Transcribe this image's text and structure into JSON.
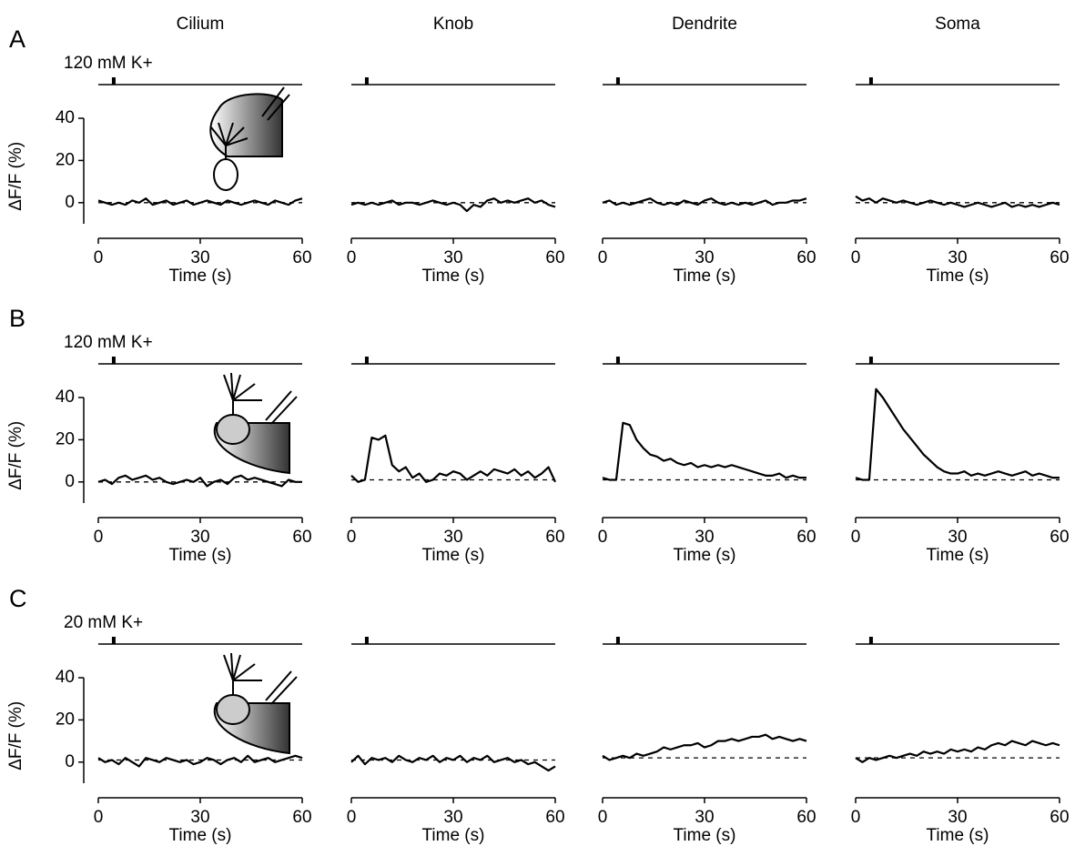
{
  "chart_data": [
    {
      "type": "line",
      "title": "Cilium",
      "panel_label": "A",
      "stimulus_label": "120 mM K+",
      "y_label": "ΔF/F (%)",
      "x_label": "Time (s)",
      "stimulus": [
        4,
        5
      ],
      "baseline": 0,
      "xlim": [
        0,
        60
      ],
      "xticks": [
        0,
        30,
        60
      ],
      "ylim": [
        -10,
        40
      ],
      "yticks": [
        0,
        20,
        40
      ],
      "color": "#000000",
      "x": [
        0,
        2,
        4,
        6,
        8,
        10,
        12,
        14,
        16,
        18,
        20,
        22,
        24,
        26,
        28,
        30,
        32,
        34,
        36,
        38,
        40,
        42,
        44,
        46,
        48,
        50,
        52,
        54,
        56,
        58,
        60
      ],
      "values": [
        1,
        0,
        -1,
        0,
        -1,
        1,
        0,
        2,
        -1,
        0,
        1,
        -1,
        0,
        1,
        -1,
        0,
        1,
        0,
        -1,
        1,
        0,
        -1,
        0,
        1,
        0,
        -1,
        1,
        0,
        -1,
        1,
        2
      ]
    },
    {
      "type": "line",
      "title": "Knob",
      "x_label": "Time (s)",
      "stimulus": [
        4,
        5
      ],
      "baseline": 0,
      "xlim": [
        0,
        60
      ],
      "xticks": [
        0,
        30,
        60
      ],
      "ylim": [
        -10,
        40
      ],
      "color": "#000000",
      "x": [
        0,
        2,
        4,
        6,
        8,
        10,
        12,
        14,
        16,
        18,
        20,
        22,
        24,
        26,
        28,
        30,
        32,
        34,
        36,
        38,
        40,
        42,
        44,
        46,
        48,
        50,
        52,
        54,
        56,
        58,
        60
      ],
      "values": [
        -1,
        0,
        -1,
        0,
        -1,
        0,
        1,
        -1,
        0,
        0,
        -1,
        0,
        1,
        0,
        -1,
        0,
        -1,
        -4,
        -1,
        -2,
        1,
        2,
        0,
        1,
        0,
        1,
        2,
        0,
        1,
        -1,
        -2
      ]
    },
    {
      "type": "line",
      "title": "Dendrite",
      "x_label": "Time (s)",
      "stimulus": [
        4,
        5
      ],
      "baseline": 0,
      "xlim": [
        0,
        60
      ],
      "xticks": [
        0,
        30,
        60
      ],
      "ylim": [
        -10,
        40
      ],
      "color": "#000000",
      "x": [
        0,
        2,
        4,
        6,
        8,
        10,
        12,
        14,
        16,
        18,
        20,
        22,
        24,
        26,
        28,
        30,
        32,
        34,
        36,
        38,
        40,
        42,
        44,
        46,
        48,
        50,
        52,
        54,
        56,
        58,
        60
      ],
      "values": [
        0,
        1,
        -1,
        0,
        -1,
        0,
        1,
        2,
        0,
        -1,
        0,
        -1,
        1,
        0,
        -1,
        1,
        2,
        0,
        -1,
        0,
        -1,
        0,
        -1,
        0,
        1,
        -1,
        0,
        0,
        1,
        1,
        2
      ]
    },
    {
      "type": "line",
      "title": "Soma",
      "x_label": "Time (s)",
      "stimulus": [
        4,
        5
      ],
      "baseline": 0,
      "xlim": [
        0,
        60
      ],
      "xticks": [
        0,
        30,
        60
      ],
      "ylim": [
        -10,
        40
      ],
      "color": "#000000",
      "x": [
        0,
        2,
        4,
        6,
        8,
        10,
        12,
        14,
        16,
        18,
        20,
        22,
        24,
        26,
        28,
        30,
        32,
        34,
        36,
        38,
        40,
        42,
        44,
        46,
        48,
        50,
        52,
        54,
        56,
        58,
        60
      ],
      "values": [
        3,
        1,
        2,
        0,
        2,
        1,
        0,
        1,
        0,
        -1,
        0,
        1,
        0,
        -1,
        0,
        -1,
        -2,
        -1,
        0,
        -1,
        -2,
        -1,
        0,
        -2,
        -1,
        -2,
        -1,
        -2,
        -1,
        0,
        -1
      ]
    },
    {
      "type": "line",
      "panel_label": "B",
      "stimulus_label": "120 mM K+",
      "y_label": "ΔF/F (%)",
      "x_label": "Time (s)",
      "stimulus": [
        4,
        5
      ],
      "baseline": 0,
      "xlim": [
        0,
        60
      ],
      "xticks": [
        0,
        30,
        60
      ],
      "ylim": [
        -10,
        40
      ],
      "yticks": [
        0,
        20,
        40
      ],
      "color": "#000000",
      "x": [
        0,
        2,
        4,
        6,
        8,
        10,
        12,
        14,
        16,
        18,
        20,
        22,
        24,
        26,
        28,
        30,
        32,
        34,
        36,
        38,
        40,
        42,
        44,
        46,
        48,
        50,
        52,
        54,
        56,
        58,
        60
      ],
      "values": [
        0,
        1,
        -1,
        2,
        3,
        1,
        2,
        3,
        1,
        2,
        0,
        -1,
        0,
        1,
        0,
        2,
        -2,
        0,
        1,
        -1,
        2,
        3,
        1,
        2,
        1,
        0,
        -1,
        -2,
        1,
        0,
        0
      ]
    },
    {
      "type": "line",
      "x_label": "Time (s)",
      "stimulus": [
        4,
        5
      ],
      "baseline": 1,
      "xlim": [
        0,
        60
      ],
      "xticks": [
        0,
        30,
        60
      ],
      "ylim": [
        -10,
        40
      ],
      "color": "#000000",
      "x": [
        0,
        2,
        4,
        6,
        8,
        10,
        12,
        14,
        16,
        18,
        20,
        22,
        24,
        26,
        28,
        30,
        32,
        34,
        36,
        38,
        40,
        42,
        44,
        46,
        48,
        50,
        52,
        54,
        56,
        58,
        60
      ],
      "values": [
        3,
        0,
        1,
        21,
        20,
        22,
        8,
        5,
        7,
        2,
        4,
        0,
        1,
        4,
        3,
        5,
        4,
        1,
        3,
        5,
        3,
        6,
        5,
        4,
        6,
        3,
        5,
        2,
        4,
        7,
        0
      ]
    },
    {
      "type": "line",
      "x_label": "Time (s)",
      "stimulus": [
        4,
        5
      ],
      "baseline": 1,
      "xlim": [
        0,
        60
      ],
      "xticks": [
        0,
        30,
        60
      ],
      "ylim": [
        -10,
        40
      ],
      "color": "#000000",
      "x": [
        0,
        2,
        4,
        6,
        8,
        10,
        12,
        14,
        16,
        18,
        20,
        22,
        24,
        26,
        28,
        30,
        32,
        34,
        36,
        38,
        40,
        42,
        44,
        46,
        48,
        50,
        52,
        54,
        56,
        58,
        60
      ],
      "values": [
        2,
        1,
        1,
        28,
        27,
        20,
        16,
        13,
        12,
        10,
        11,
        9,
        8,
        9,
        7,
        8,
        7,
        8,
        7,
        8,
        7,
        6,
        5,
        4,
        3,
        3,
        4,
        2,
        3,
        2,
        2
      ]
    },
    {
      "type": "line",
      "x_label": "Time (s)",
      "stimulus": [
        4,
        5
      ],
      "baseline": 1,
      "xlim": [
        0,
        60
      ],
      "xticks": [
        0,
        30,
        60
      ],
      "ylim": [
        -10,
        40
      ],
      "color": "#000000",
      "x": [
        0,
        2,
        4,
        6,
        8,
        10,
        12,
        14,
        16,
        18,
        20,
        22,
        24,
        26,
        28,
        30,
        32,
        34,
        36,
        38,
        40,
        42,
        44,
        46,
        48,
        50,
        52,
        54,
        56,
        58,
        60
      ],
      "values": [
        2,
        1,
        1,
        44,
        40,
        35,
        30,
        25,
        21,
        17,
        13,
        10,
        7,
        5,
        4,
        4,
        5,
        3,
        4,
        3,
        4,
        5,
        4,
        3,
        4,
        5,
        3,
        4,
        3,
        2,
        2
      ]
    },
    {
      "type": "line",
      "panel_label": "C",
      "stimulus_label": "20 mM K+",
      "y_label": "ΔF/F (%)",
      "x_label": "Time (s)",
      "stimulus": [
        4,
        5
      ],
      "baseline": 1,
      "xlim": [
        0,
        60
      ],
      "xticks": [
        0,
        30,
        60
      ],
      "ylim": [
        -10,
        40
      ],
      "yticks": [
        0,
        20,
        40
      ],
      "color": "#000000",
      "x": [
        0,
        2,
        4,
        6,
        8,
        10,
        12,
        14,
        16,
        18,
        20,
        22,
        24,
        26,
        28,
        30,
        32,
        34,
        36,
        38,
        40,
        42,
        44,
        46,
        48,
        50,
        52,
        54,
        56,
        58,
        60
      ],
      "values": [
        2,
        0,
        1,
        -1,
        2,
        0,
        -2,
        2,
        1,
        0,
        2,
        1,
        0,
        1,
        -1,
        0,
        2,
        1,
        -1,
        1,
        2,
        0,
        3,
        0,
        1,
        2,
        0,
        1,
        2,
        3,
        2
      ]
    },
    {
      "type": "line",
      "x_label": "Time (s)",
      "stimulus": [
        4,
        5
      ],
      "baseline": 1,
      "xlim": [
        0,
        60
      ],
      "xticks": [
        0,
        30,
        60
      ],
      "ylim": [
        -10,
        40
      ],
      "color": "#000000",
      "x": [
        0,
        2,
        4,
        6,
        8,
        10,
        12,
        14,
        16,
        18,
        20,
        22,
        24,
        26,
        28,
        30,
        32,
        34,
        36,
        38,
        40,
        42,
        44,
        46,
        48,
        50,
        52,
        54,
        56,
        58,
        60
      ],
      "values": [
        0,
        3,
        -1,
        2,
        1,
        2,
        0,
        3,
        1,
        0,
        2,
        1,
        3,
        0,
        2,
        1,
        3,
        0,
        2,
        1,
        3,
        0,
        1,
        2,
        0,
        1,
        -1,
        0,
        -2,
        -4,
        -2
      ]
    },
    {
      "type": "line",
      "x_label": "Time (s)",
      "stimulus": [
        4,
        5
      ],
      "baseline": 2,
      "xlim": [
        0,
        60
      ],
      "xticks": [
        0,
        30,
        60
      ],
      "ylim": [
        -10,
        40
      ],
      "color": "#000000",
      "x": [
        0,
        2,
        4,
        6,
        8,
        10,
        12,
        14,
        16,
        18,
        20,
        22,
        24,
        26,
        28,
        30,
        32,
        34,
        36,
        38,
        40,
        42,
        44,
        46,
        48,
        50,
        52,
        54,
        56,
        58,
        60
      ],
      "values": [
        3,
        1,
        2,
        3,
        2,
        4,
        3,
        4,
        5,
        7,
        6,
        7,
        8,
        8,
        9,
        7,
        8,
        10,
        10,
        11,
        10,
        11,
        12,
        12,
        13,
        11,
        12,
        11,
        10,
        11,
        10
      ]
    },
    {
      "type": "line",
      "x_label": "Time (s)",
      "stimulus": [
        4,
        5
      ],
      "baseline": 2,
      "xlim": [
        0,
        60
      ],
      "xticks": [
        0,
        30,
        60
      ],
      "ylim": [
        -10,
        40
      ],
      "color": "#000000",
      "x": [
        0,
        2,
        4,
        6,
        8,
        10,
        12,
        14,
        16,
        18,
        20,
        22,
        24,
        26,
        28,
        30,
        32,
        34,
        36,
        38,
        40,
        42,
        44,
        46,
        48,
        50,
        52,
        54,
        56,
        58,
        60
      ],
      "values": [
        2,
        0,
        2,
        1,
        2,
        3,
        2,
        3,
        4,
        3,
        5,
        4,
        5,
        4,
        6,
        5,
        6,
        5,
        7,
        6,
        8,
        9,
        8,
        10,
        9,
        8,
        10,
        9,
        8,
        9,
        8
      ]
    }
  ]
}
